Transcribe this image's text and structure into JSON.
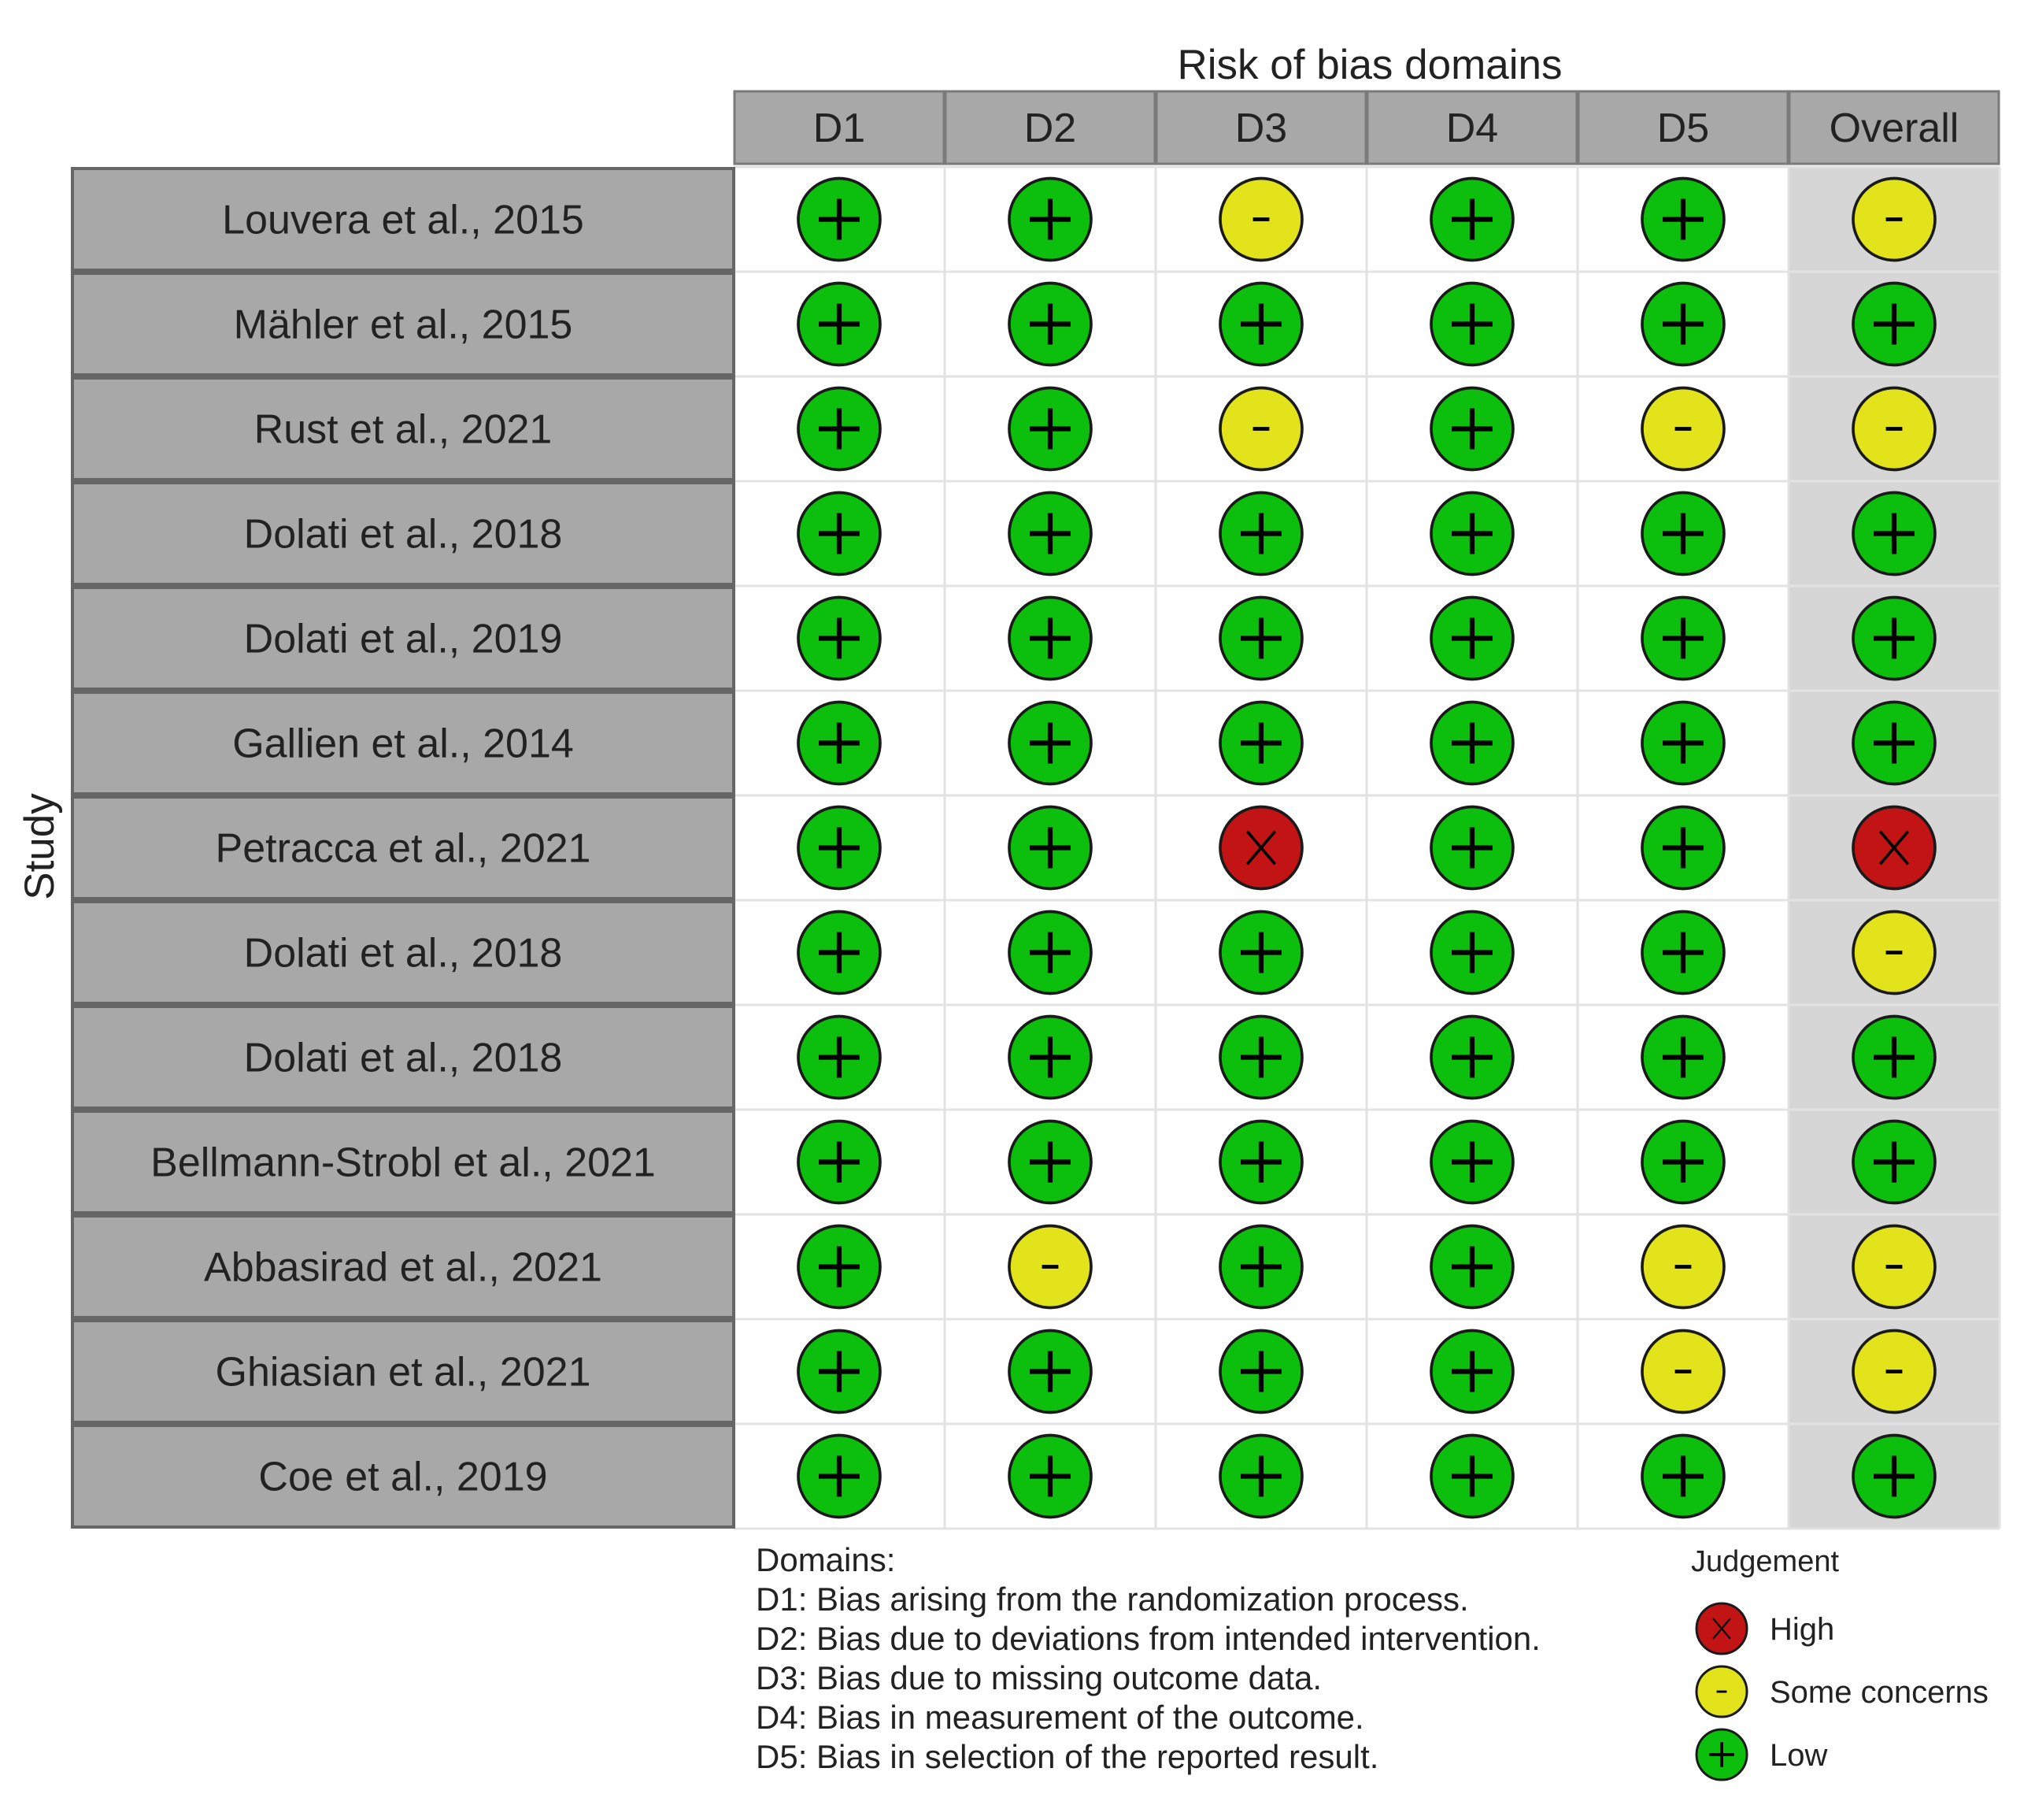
{
  "chart_data": {
    "type": "table",
    "title": "Risk of bias domains",
    "ylabel": "Study",
    "columns": [
      "D1",
      "D2",
      "D3",
      "D4",
      "D5",
      "Overall"
    ],
    "rows": [
      {
        "study": "Louvera et al., 2015",
        "judgements": [
          "low",
          "low",
          "some",
          "low",
          "low",
          "some"
        ]
      },
      {
        "study": "Mähler et al., 2015",
        "judgements": [
          "low",
          "low",
          "low",
          "low",
          "low",
          "low"
        ]
      },
      {
        "study": "Rust et al., 2021",
        "judgements": [
          "low",
          "low",
          "some",
          "low",
          "some",
          "some"
        ]
      },
      {
        "study": "Dolati et al., 2018",
        "judgements": [
          "low",
          "low",
          "low",
          "low",
          "low",
          "low"
        ]
      },
      {
        "study": "Dolati et al., 2019",
        "judgements": [
          "low",
          "low",
          "low",
          "low",
          "low",
          "low"
        ]
      },
      {
        "study": "Gallien et al., 2014",
        "judgements": [
          "low",
          "low",
          "low",
          "low",
          "low",
          "low"
        ]
      },
      {
        "study": "Petracca et al., 2021",
        "judgements": [
          "low",
          "low",
          "high",
          "low",
          "low",
          "high"
        ]
      },
      {
        "study": "Dolati et al., 2018",
        "judgements": [
          "low",
          "low",
          "low",
          "low",
          "low",
          "some"
        ]
      },
      {
        "study": "Dolati et al., 2018",
        "judgements": [
          "low",
          "low",
          "low",
          "low",
          "low",
          "low"
        ]
      },
      {
        "study": "Bellmann-Strobl et al., 2021",
        "judgements": [
          "low",
          "low",
          "low",
          "low",
          "low",
          "low"
        ]
      },
      {
        "study": "Abbasirad et al., 2021",
        "judgements": [
          "low",
          "some",
          "low",
          "low",
          "some",
          "some"
        ]
      },
      {
        "study": "Ghiasian et al., 2021",
        "judgements": [
          "low",
          "low",
          "low",
          "low",
          "some",
          "some"
        ]
      },
      {
        "study": "Coe et al., 2019",
        "judgements": [
          "low",
          "low",
          "low",
          "low",
          "low",
          "low"
        ]
      }
    ],
    "symbols": {
      "low": "+",
      "some": "-",
      "high": "X"
    },
    "colors": {
      "low": "#0dbf0d",
      "some": "#e3e31b",
      "high": "#c21414",
      "header": "#a8a8a8",
      "label": "#a8a8a8",
      "overall": "#d6d6d6"
    },
    "domains_title": "Domains:",
    "domains": [
      "D1: Bias arising from the randomization process.",
      "D2: Bias due to deviations from intended intervention.",
      "D3: Bias due to missing outcome data.",
      "D4: Bias in measurement of the outcome.",
      "D5: Bias in selection of the reported result."
    ],
    "legend_title": "Judgement",
    "legend": [
      {
        "key": "high",
        "label": "High"
      },
      {
        "key": "some",
        "label": "Some concerns"
      },
      {
        "key": "low",
        "label": "Low"
      }
    ]
  }
}
